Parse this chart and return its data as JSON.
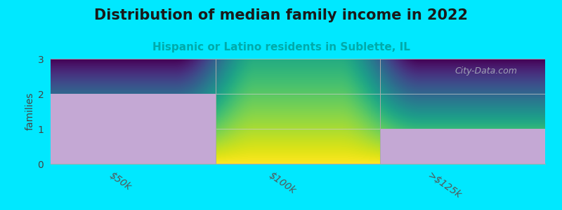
{
  "title": "Distribution of median family income in 2022",
  "subtitle": "Hispanic or Latino residents in Sublette, IL",
  "categories": [
    "$50k",
    "$100k",
    ">$125k"
  ],
  "values": [
    2,
    0,
    1
  ],
  "bar_color": "#c4a8d4",
  "background_color": "#00e8ff",
  "plot_bg_top": "#d8f0d8",
  "plot_bg_bottom": "#ffffff",
  "ylabel": "families",
  "ylim": [
    0,
    3
  ],
  "yticks": [
    0,
    1,
    2,
    3
  ],
  "title_fontsize": 15,
  "subtitle_fontsize": 11,
  "subtitle_color": "#00aaaa",
  "watermark": "City-Data.com",
  "separator_color": "#aaaaaa"
}
